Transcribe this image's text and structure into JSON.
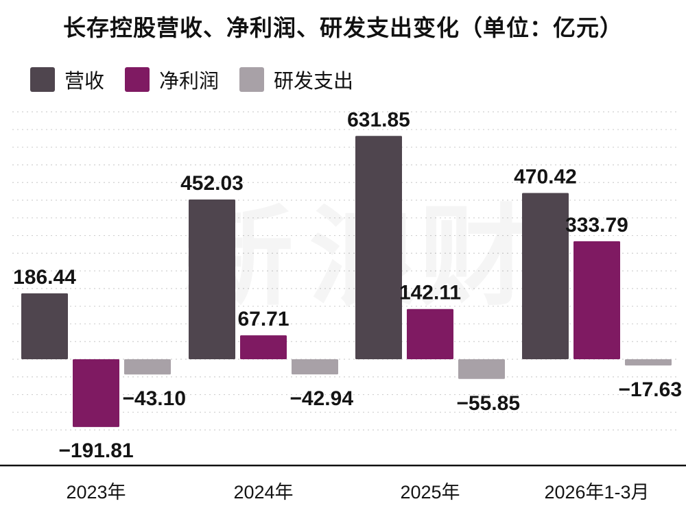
{
  "chart_data": {
    "type": "bar",
    "title": "长存控股营收、净利润、研发支出变化（单位：亿元）",
    "categories": [
      "2023年",
      "2024年",
      "2025年",
      "2026年1-3月"
    ],
    "series": [
      {
        "name": "营收",
        "values": [
          186.44,
          452.03,
          631.85,
          470.42
        ],
        "color": "#4f454e"
      },
      {
        "name": "净利润",
        "values": [
          -191.81,
          67.71,
          142.11,
          333.79
        ],
        "color": "#7f1a62"
      },
      {
        "name": "研发支出",
        "values": [
          -43.1,
          -42.94,
          -55.85,
          -17.63
        ],
        "color": "#a8a1a7"
      }
    ],
    "value_labels": [
      [
        "186.44",
        "452.03",
        "631.85",
        "470.42"
      ],
      [
        "−191.81",
        "67.71",
        "142.11",
        "333.79"
      ],
      [
        "−43.10",
        "−42.94",
        "−55.85",
        "−17.63"
      ]
    ],
    "ylim": [
      -300,
      700
    ],
    "grid": true,
    "legend_position": "top-left"
  }
}
